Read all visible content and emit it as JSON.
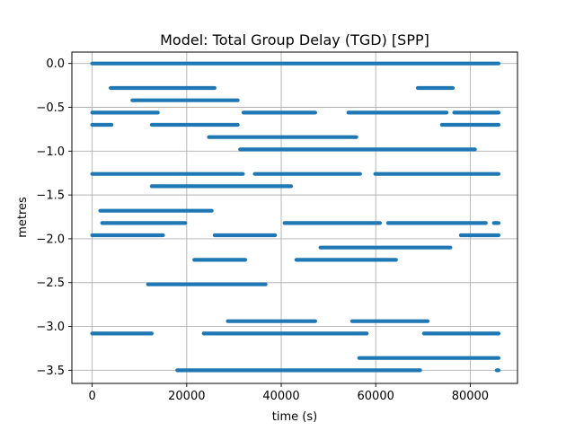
{
  "chart_data": {
    "type": "line",
    "title": "Model: Total Group Delay (TGD) [SPP]",
    "xlabel": "time (s)",
    "ylabel": "metres",
    "xlim": [
      -4300,
      90000
    ],
    "ylim": [
      -3.65,
      0.13
    ],
    "x_ticks": [
      {
        "value": 0,
        "label": "0"
      },
      {
        "value": 20000,
        "label": "20000"
      },
      {
        "value": 40000,
        "label": "40000"
      },
      {
        "value": 60000,
        "label": "60000"
      },
      {
        "value": 80000,
        "label": "80000"
      }
    ],
    "y_ticks": [
      {
        "value": 0.0,
        "label": "0.0"
      },
      {
        "value": -0.5,
        "label": "−0.5"
      },
      {
        "value": -1.0,
        "label": "−1.0"
      },
      {
        "value": -1.5,
        "label": "−1.5"
      },
      {
        "value": -2.0,
        "label": "−2.0"
      },
      {
        "value": -2.5,
        "label": "−2.5"
      },
      {
        "value": -3.0,
        "label": "−3.0"
      },
      {
        "value": -3.5,
        "label": "−3.5"
      }
    ],
    "grid": true,
    "color": "#1f77b4",
    "series": [
      {
        "y": 0.0,
        "x": [
          0,
          86000
        ]
      },
      {
        "y": -0.28,
        "x": [
          3900,
          25900
        ]
      },
      {
        "y": -0.28,
        "x": [
          68900,
          76300
        ]
      },
      {
        "y": -0.42,
        "x": [
          8500,
          30800
        ]
      },
      {
        "y": -0.56,
        "x": [
          0,
          13900
        ]
      },
      {
        "y": -0.56,
        "x": [
          32000,
          47200
        ]
      },
      {
        "y": -0.56,
        "x": [
          54200,
          75000
        ]
      },
      {
        "y": -0.56,
        "x": [
          76600,
          86000
        ]
      },
      {
        "y": -0.7,
        "x": [
          0,
          4100
        ]
      },
      {
        "y": -0.7,
        "x": [
          12600,
          30800
        ]
      },
      {
        "y": -0.7,
        "x": [
          74000,
          86000
        ]
      },
      {
        "y": -0.84,
        "x": [
          24700,
          55900
        ]
      },
      {
        "y": -0.98,
        "x": [
          31300,
          81000
        ]
      },
      {
        "y": -1.26,
        "x": [
          0,
          31900
        ]
      },
      {
        "y": -1.26,
        "x": [
          34400,
          56700
        ]
      },
      {
        "y": -1.26,
        "x": [
          59900,
          86000
        ]
      },
      {
        "y": -1.4,
        "x": [
          12600,
          42100
        ]
      },
      {
        "y": -1.68,
        "x": [
          1700,
          25300
        ]
      },
      {
        "y": -1.82,
        "x": [
          2100,
          19700
        ]
      },
      {
        "y": -1.82,
        "x": [
          40700,
          60900
        ]
      },
      {
        "y": -1.82,
        "x": [
          62600,
          83300
        ]
      },
      {
        "y": -1.82,
        "x": [
          85000,
          86000
        ]
      },
      {
        "y": -1.96,
        "x": [
          0,
          15000
        ]
      },
      {
        "y": -1.96,
        "x": [
          25900,
          38700
        ]
      },
      {
        "y": -1.96,
        "x": [
          78000,
          86000
        ]
      },
      {
        "y": -2.1,
        "x": [
          48300,
          75800
        ]
      },
      {
        "y": -2.24,
        "x": [
          21600,
          32400
        ]
      },
      {
        "y": -2.24,
        "x": [
          43200,
          64300
        ]
      },
      {
        "y": -2.52,
        "x": [
          11800,
          36700
        ]
      },
      {
        "y": -2.94,
        "x": [
          28700,
          47200
        ]
      },
      {
        "y": -2.94,
        "x": [
          55000,
          71000
        ]
      },
      {
        "y": -3.08,
        "x": [
          0,
          12600
        ]
      },
      {
        "y": -3.08,
        "x": [
          23600,
          58100
        ]
      },
      {
        "y": -3.08,
        "x": [
          70200,
          86000
        ]
      },
      {
        "y": -3.36,
        "x": [
          56500,
          86000
        ]
      },
      {
        "y": -3.5,
        "x": [
          18000,
          69400
        ]
      },
      {
        "y": -3.5,
        "x": [
          85600,
          86000
        ]
      }
    ]
  }
}
